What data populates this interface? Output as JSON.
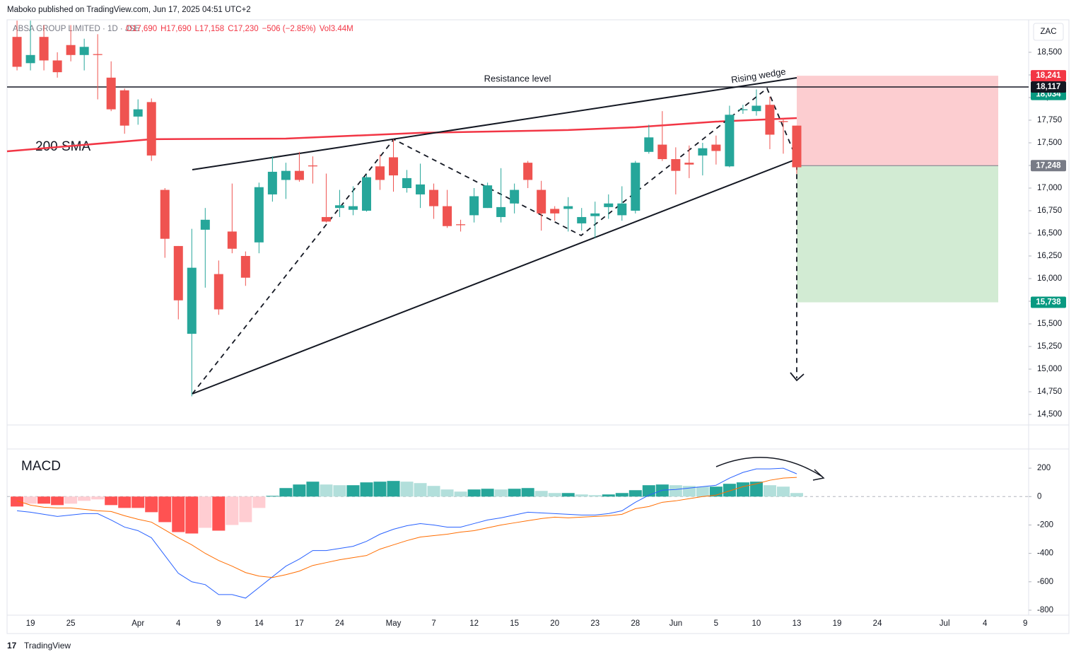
{
  "header": "Maboko published on TradingView.com, Jun 17, 2025 04:51 UTC+2",
  "footer": "TradingView",
  "chart_data": [
    {
      "type": "candlestick",
      "title": "ABSA GROUP LIMITED · 1D · JSE",
      "legend": [
        "O17,690",
        "H17,690",
        "L17,158",
        "C17,230",
        "−506 (−2.85%)",
        "Vol3.44M"
      ],
      "currency": "ZAC",
      "up_color": "#26a69a",
      "down_color": "#ef5350",
      "open": [
        18670,
        18380,
        18670,
        18410,
        18580,
        18470,
        18480,
        18220,
        18080,
        17790,
        17950,
        16980,
        16360,
        15390,
        16540,
        16050,
        16520,
        16250,
        16400,
        16930,
        17090,
        17190,
        17250,
        16680,
        16780,
        16760,
        16750,
        17240,
        17340,
        17000,
        16930,
        16980,
        16800,
        16600,
        16700,
        16780,
        16680,
        16830,
        17280,
        16980,
        16770,
        16770,
        16610,
        16690,
        16790,
        16700,
        16750,
        17400,
        17480,
        17320,
        17280,
        17360,
        17480,
        17240,
        17860,
        17850,
        17920,
        17740,
        17690
      ],
      "high": [
        18850,
        18850,
        18800,
        18500,
        18800,
        18650,
        18700,
        18400,
        18100,
        17980,
        17990,
        17000,
        16360,
        16550,
        16780,
        16200,
        17050,
        16300,
        17060,
        17350,
        17280,
        17400,
        17350,
        17160,
        16980,
        17020,
        17150,
        17370,
        17540,
        17200,
        17270,
        17050,
        16980,
        16650,
        17000,
        17060,
        17220,
        17050,
        17300,
        17080,
        16800,
        16900,
        16780,
        16850,
        16930,
        17020,
        17300,
        17700,
        17850,
        17450,
        17470,
        17500,
        17580,
        17910,
        17920,
        18090,
        18010,
        17770,
        17690
      ],
      "low": [
        18300,
        18300,
        18300,
        18220,
        18400,
        18300,
        17980,
        17850,
        17600,
        17700,
        17300,
        16230,
        15550,
        14700,
        15900,
        15600,
        16280,
        15920,
        16280,
        16850,
        16880,
        17070,
        17050,
        16620,
        16680,
        16700,
        16740,
        16980,
        16960,
        16950,
        16780,
        16660,
        16560,
        16520,
        16620,
        16780,
        16620,
        16720,
        17000,
        16530,
        16640,
        16520,
        16530,
        16450,
        16660,
        16640,
        16720,
        17380,
        17300,
        16930,
        17110,
        17140,
        17260,
        17230,
        17820,
        17800,
        17430,
        17380,
        17158
      ],
      "close": [
        18340,
        18470,
        18410,
        18280,
        18470,
        18560,
        18470,
        17870,
        17690,
        17870,
        17360,
        16440,
        15760,
        16120,
        16650,
        15660,
        16330,
        16010,
        17010,
        17180,
        17190,
        17090,
        17240,
        16630,
        16810,
        16800,
        17120,
        17090,
        17140,
        17110,
        17040,
        16800,
        16580,
        16590,
        16910,
        17030,
        16790,
        16980,
        17090,
        16720,
        16720,
        16800,
        16680,
        16720,
        16830,
        16830,
        17280,
        17560,
        17320,
        17190,
        17260,
        17440,
        17410,
        17810,
        17870,
        17910,
        17590,
        17730,
        17230
      ],
      "xlim": [
        -0.74,
        75.25
      ],
      "xticks": [
        {
          "value": 1,
          "label": "19"
        },
        {
          "value": 4,
          "label": "25"
        },
        {
          "value": 9,
          "label": "Apr"
        },
        {
          "value": 12,
          "label": "4"
        },
        {
          "value": 15,
          "label": "9"
        },
        {
          "value": 18,
          "label": "14"
        },
        {
          "value": 21,
          "label": "17"
        },
        {
          "value": 24,
          "label": "24"
        },
        {
          "value": 28,
          "label": "May"
        },
        {
          "value": 31,
          "label": "7"
        },
        {
          "value": 34,
          "label": "12"
        },
        {
          "value": 37,
          "label": "15"
        },
        {
          "value": 40,
          "label": "20"
        },
        {
          "value": 43,
          "label": "23"
        },
        {
          "value": 46,
          "label": "28"
        },
        {
          "value": 49,
          "label": "Jun"
        },
        {
          "value": 52,
          "label": "5"
        },
        {
          "value": 55,
          "label": "10"
        },
        {
          "value": 58,
          "label": "13"
        },
        {
          "value": 61,
          "label": "19"
        },
        {
          "value": 64,
          "label": "24"
        },
        {
          "value": 69,
          "label": "Jul"
        },
        {
          "value": 72,
          "label": "4"
        },
        {
          "value": 75,
          "label": "9"
        }
      ],
      "ylim": [
        14391,
        18859
      ],
      "yticks": [
        {
          "value": 14500,
          "label": "14,500"
        },
        {
          "value": 14750,
          "label": "14,750"
        },
        {
          "value": 15000,
          "label": "15,000"
        },
        {
          "value": 15250,
          "label": "15,250"
        },
        {
          "value": 15500,
          "label": "15,500"
        },
        {
          "value": 15750,
          "label": "15,750"
        },
        {
          "value": 16000,
          "label": "16,000"
        },
        {
          "value": 16250,
          "label": "16,250"
        },
        {
          "value": 16500,
          "label": "16,500"
        },
        {
          "value": 16750,
          "label": "16,750"
        },
        {
          "value": 17000,
          "label": "17,000"
        },
        {
          "value": 17250,
          "label": "17,250"
        },
        {
          "value": 17500,
          "label": "17,500"
        },
        {
          "value": 17750,
          "label": "17,750"
        },
        {
          "value": 18000,
          "label": "18,000"
        },
        {
          "value": 18250,
          "label": "18,250"
        },
        {
          "value": 18500,
          "label": "18,500"
        }
      ],
      "sma": {
        "name": "200 SMA",
        "color": "#f23645",
        "x": [
          -0.74,
          10,
          20,
          30,
          41,
          46,
          52,
          58
        ],
        "values": [
          17406,
          17540,
          17547,
          17610,
          17641,
          17672,
          17734,
          17773
        ]
      },
      "annotations": [
        "Resistance level",
        "Rising wedge"
      ],
      "resistance": {
        "value": 18117,
        "label": "18,117"
      },
      "position": {
        "hidden": {
          "value": 18034,
          "label": "18,034"
        },
        "stop": {
          "value": 18241,
          "label": "18,241"
        },
        "entry": {
          "value": 17248,
          "label": "17,248"
        },
        "target": {
          "value": 15738,
          "label": "15,738"
        }
      }
    },
    {
      "type": "macd",
      "title": "MACD",
      "histogram": [
        -70,
        -50,
        -50,
        -60,
        -50,
        -30,
        -20,
        -60,
        -80,
        -80,
        -110,
        -180,
        -250,
        -260,
        -220,
        -240,
        -200,
        -180,
        -80,
        5,
        60,
        85,
        105,
        85,
        80,
        80,
        100,
        105,
        110,
        105,
        95,
        75,
        50,
        35,
        50,
        55,
        50,
        55,
        60,
        40,
        25,
        25,
        15,
        10,
        15,
        25,
        45,
        80,
        85,
        80,
        75,
        70,
        70,
        90,
        100,
        105,
        80,
        70,
        25
      ],
      "colors": {
        "up_strong": "#26a69a",
        "up_weak": "#b2dfdb",
        "down_strong": "#ff5252",
        "down_weak": "#ffcdd2"
      },
      "series": [
        {
          "color": "#2962ff",
          "values": [
            -100,
            -110,
            -125,
            -140,
            -130,
            -120,
            -120,
            -165,
            -215,
            -240,
            -290,
            -415,
            -540,
            -600,
            -620,
            -690,
            -690,
            -715,
            -640,
            -565,
            -490,
            -440,
            -380,
            -380,
            -365,
            -350,
            -315,
            -265,
            -230,
            -205,
            -190,
            -200,
            -215,
            -215,
            -190,
            -165,
            -150,
            -130,
            -110,
            -115,
            -120,
            -125,
            -130,
            -130,
            -120,
            -100,
            -40,
            10,
            45,
            50,
            60,
            70,
            80,
            130,
            170,
            195,
            195,
            200,
            160
          ]
        },
        {
          "color": "#ff6d00",
          "values": [
            -30,
            -60,
            -75,
            -80,
            -80,
            -90,
            -100,
            -105,
            -135,
            -160,
            -180,
            -235,
            -290,
            -340,
            -400,
            -450,
            -490,
            -535,
            -560,
            -570,
            -550,
            -525,
            -485,
            -465,
            -445,
            -430,
            -415,
            -370,
            -340,
            -310,
            -285,
            -275,
            -265,
            -250,
            -240,
            -220,
            -200,
            -185,
            -170,
            -155,
            -145,
            -150,
            -145,
            -140,
            -135,
            -125,
            -85,
            -70,
            -40,
            -30,
            -15,
            0,
            10,
            40,
            70,
            90,
            115,
            130,
            135
          ]
        }
      ],
      "ylim": [
        -835,
        330
      ],
      "yticks": [
        200,
        0,
        -200,
        -400,
        -600,
        -800
      ]
    }
  ]
}
